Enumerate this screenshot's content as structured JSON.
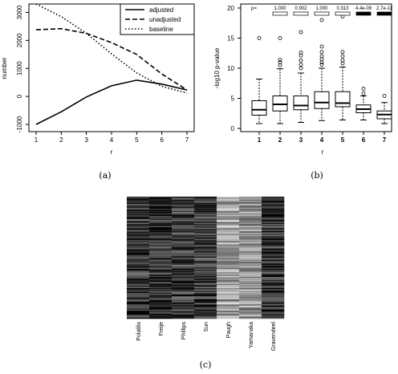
{
  "panel_a": {
    "caption": "(a)",
    "chart_data": {
      "type": "line",
      "xlabel": "r",
      "ylabel": "number",
      "x": [
        1,
        2,
        3,
        4,
        5,
        6,
        7
      ],
      "xlim": [
        1,
        7
      ],
      "ylim": [
        -1000,
        3300
      ],
      "yticks": [
        -1000,
        0,
        1000,
        2000,
        3000
      ],
      "series": [
        {
          "name": "adjusted",
          "style": "solid",
          "values": [
            -1000,
            -550,
            -20,
            380,
            580,
            440,
            230
          ]
        },
        {
          "name": "unadjusted",
          "style": "dashed",
          "values": [
            2380,
            2420,
            2250,
            1920,
            1500,
            800,
            230
          ]
        },
        {
          "name": "baseline",
          "style": "dotted",
          "values": [
            3300,
            2850,
            2250,
            1520,
            840,
            360,
            120
          ]
        }
      ],
      "legend_position": "top-right"
    }
  },
  "panel_b": {
    "caption": "(b)",
    "chart_data": {
      "type": "box",
      "xlabel": "r",
      "ylabel": "-log10 p-value",
      "ylim": [
        0,
        20
      ],
      "yticks": [
        0,
        5,
        10,
        15,
        20
      ],
      "categories": [
        "1",
        "2",
        "3",
        "4",
        "5",
        "6",
        "7"
      ],
      "p_label": "p=",
      "p_values": [
        "1.000",
        "0.902",
        "1.000",
        "0.313",
        "4.4e-09",
        "2.7e-11"
      ],
      "p_significant": [
        false,
        false,
        false,
        false,
        true,
        true
      ],
      "boxes": [
        {
          "min": 0.8,
          "q1": 2.2,
          "median": 3.1,
          "q3": 4.6,
          "max": 8.2,
          "outliers": [
            15.0
          ]
        },
        {
          "min": 0.8,
          "q1": 2.9,
          "median": 4.0,
          "q3": 5.4,
          "max": 9.9,
          "outliers": [
            10.5,
            11.0,
            11.4,
            15.0
          ]
        },
        {
          "min": 1.0,
          "q1": 3.1,
          "median": 3.8,
          "q3": 5.4,
          "max": 9.2,
          "outliers": [
            10.0,
            10.6,
            11.3,
            12.1,
            12.6,
            16.0
          ]
        },
        {
          "min": 1.3,
          "q1": 3.3,
          "median": 4.3,
          "q3": 6.1,
          "max": 10.0,
          "outliers": [
            10.6,
            11.0,
            11.5,
            12.0,
            12.7,
            13.6,
            18.0
          ]
        },
        {
          "min": 1.4,
          "q1": 3.6,
          "median": 4.2,
          "q3": 6.1,
          "max": 10.2,
          "outliers": [
            10.8,
            11.3,
            12.0,
            12.7,
            18.6
          ]
        },
        {
          "min": 1.4,
          "q1": 2.6,
          "median": 3.2,
          "q3": 3.9,
          "max": 5.4,
          "outliers": [
            5.8,
            6.6
          ]
        },
        {
          "min": 0.8,
          "q1": 1.6,
          "median": 2.3,
          "q3": 2.9,
          "max": 4.3,
          "outliers": [
            5.4
          ]
        }
      ]
    }
  },
  "panel_c": {
    "caption": "(c)",
    "chart_data": {
      "type": "heatmap",
      "columns": [
        "Polalilis",
        "Freije",
        "Phillips",
        "Sun",
        "Paugh",
        "Yamanaka",
        "Gravendeel"
      ],
      "column_brightness": [
        0.22,
        0.2,
        0.24,
        0.26,
        0.62,
        0.58,
        0.2
      ],
      "rows": 120
    }
  }
}
